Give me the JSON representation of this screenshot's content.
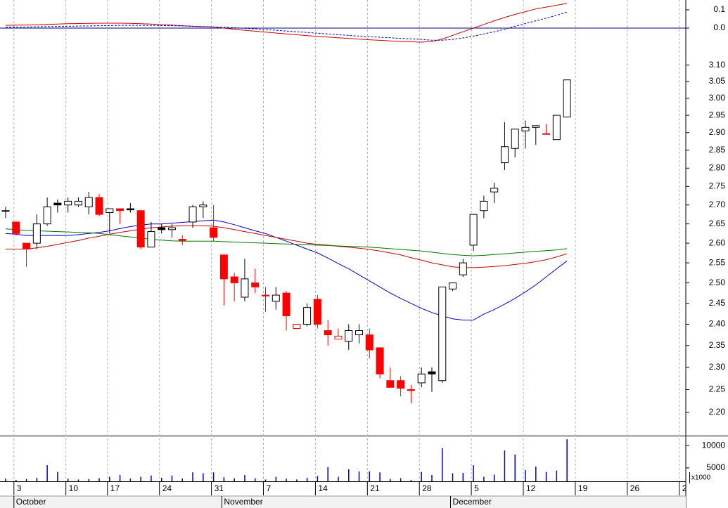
{
  "chart_data": [
    {
      "type": "candlestick",
      "log_scale": true,
      "xgrid": true,
      "ylim": [
        2.15,
        3.16
      ],
      "yticks": [
        {
          "value": 3.1,
          "label": "3.10"
        },
        {
          "value": 3.05,
          "label": "3.05"
        },
        {
          "value": 3.0,
          "label": "3.00"
        },
        {
          "value": 2.95,
          "label": "2.95"
        },
        {
          "value": 2.9,
          "label": "2.90"
        },
        {
          "value": 2.85,
          "label": "2.85"
        },
        {
          "value": 2.8,
          "label": "2.80"
        },
        {
          "value": 2.75,
          "label": "2.75"
        },
        {
          "value": 2.7,
          "label": "2.70"
        },
        {
          "value": 2.65,
          "label": "2.65"
        },
        {
          "value": 2.6,
          "label": "2.60"
        },
        {
          "value": 2.55,
          "label": "2.55"
        },
        {
          "value": 2.5,
          "label": "2.50"
        },
        {
          "value": 2.45,
          "label": "2.45"
        },
        {
          "value": 2.4,
          "label": "2.40"
        },
        {
          "value": 2.35,
          "label": "2.35"
        },
        {
          "value": 2.3,
          "label": "2.30"
        },
        {
          "value": 2.25,
          "label": "2.25"
        },
        {
          "value": 2.2,
          "label": "2.20"
        }
      ],
      "categories": [
        null,
        "3",
        null,
        null,
        null,
        null,
        "10",
        null,
        null,
        null,
        "17",
        null,
        null,
        null,
        null,
        "24",
        null,
        null,
        null,
        null,
        "31",
        null,
        null,
        null,
        null,
        "7",
        null,
        null,
        null,
        null,
        "14",
        null,
        null,
        null,
        null,
        "21",
        null,
        null,
        null,
        null,
        "28",
        null,
        null,
        null,
        null,
        "5",
        null,
        null,
        null,
        null,
        "12",
        null,
        null,
        null,
        null,
        "19",
        null,
        null,
        null,
        null,
        "26",
        null,
        null,
        null,
        null,
        "2"
      ],
      "month_categories": [
        null,
        "October",
        null,
        null,
        null,
        null,
        null,
        null,
        null,
        null,
        null,
        null,
        null,
        null,
        null,
        null,
        null,
        null,
        null,
        null,
        null,
        "November",
        null,
        null,
        null,
        null,
        null,
        null,
        null,
        null,
        null,
        null,
        null,
        null,
        null,
        null,
        null,
        null,
        null,
        null,
        null,
        null,
        null,
        "December",
        null,
        null,
        null,
        null,
        null,
        null,
        null,
        null,
        null,
        null,
        null,
        null,
        null,
        null,
        null,
        null,
        null,
        null,
        null,
        null,
        null,
        null
      ],
      "rising_color": "#000000",
      "falling_color": "#ff0000",
      "hollow_fill": "#ffffff",
      "open": [
        2.685,
        2.655,
        2.6,
        2.6,
        2.65,
        2.705,
        2.7,
        2.7,
        2.695,
        2.72,
        2.68,
        2.69,
        2.69,
        2.685,
        2.59,
        2.64,
        2.635,
        2.61,
        2.655,
        2.695,
        2.64,
        2.57,
        2.515,
        2.465,
        2.5,
        2.47,
        2.455,
        2.475,
        2.39,
        2.4,
        2.46,
        2.385,
        2.365,
        2.36,
        2.375,
        2.375,
        2.345,
        2.27,
        2.27,
        2.25,
        2.265,
        2.29,
        2.27,
        2.485,
        2.52,
        2.595,
        2.685,
        2.735,
        2.815,
        2.855,
        2.905,
        2.915,
        2.897,
        2.88,
        2.945,
        null,
        null,
        null,
        null,
        null,
        null,
        null,
        null,
        null,
        null,
        null
      ],
      "high": [
        2.695,
        2.655,
        2.6,
        2.675,
        2.72,
        2.715,
        2.72,
        2.72,
        2.735,
        2.73,
        2.69,
        2.69,
        2.705,
        2.685,
        2.655,
        2.65,
        2.65,
        2.62,
        2.7,
        2.71,
        2.7,
        2.57,
        2.525,
        2.56,
        2.535,
        2.49,
        2.49,
        2.48,
        2.4,
        2.45,
        2.47,
        2.41,
        2.39,
        2.4,
        2.4,
        2.39,
        2.345,
        2.3,
        2.28,
        2.26,
        2.3,
        2.3,
        2.49,
        2.5,
        2.56,
        2.675,
        2.725,
        2.76,
        2.93,
        2.91,
        2.935,
        2.92,
        2.925,
        2.95,
        3.055,
        null,
        null,
        null,
        null,
        null,
        null,
        null,
        null,
        null,
        null,
        null
      ],
      "low": [
        2.665,
        2.62,
        2.54,
        2.585,
        2.645,
        2.68,
        2.68,
        2.695,
        2.675,
        2.67,
        2.625,
        2.65,
        2.68,
        2.585,
        2.59,
        2.625,
        2.615,
        2.595,
        2.64,
        2.665,
        2.605,
        2.445,
        2.455,
        2.455,
        2.475,
        2.43,
        2.435,
        2.385,
        2.39,
        2.395,
        2.39,
        2.35,
        2.365,
        2.34,
        2.355,
        2.32,
        2.275,
        2.255,
        2.235,
        2.22,
        2.255,
        2.245,
        2.265,
        2.48,
        2.515,
        2.58,
        2.665,
        2.705,
        2.795,
        2.83,
        2.855,
        2.865,
        2.895,
        2.88,
        2.945,
        null,
        null,
        null,
        null,
        null,
        null,
        null,
        null,
        null,
        null,
        null
      ],
      "close": [
        2.685,
        2.625,
        2.585,
        2.65,
        2.695,
        2.7,
        2.71,
        2.71,
        2.72,
        2.675,
        2.69,
        2.685,
        2.687,
        2.59,
        2.63,
        2.635,
        2.64,
        2.607,
        2.695,
        2.7,
        2.615,
        2.51,
        2.5,
        2.51,
        2.49,
        2.468,
        2.47,
        2.42,
        2.4,
        2.44,
        2.4,
        2.375,
        2.372,
        2.385,
        2.385,
        2.34,
        2.285,
        2.255,
        2.253,
        2.248,
        2.285,
        2.285,
        2.49,
        2.5,
        2.55,
        2.675,
        2.71,
        2.745,
        2.86,
        2.91,
        2.915,
        2.92,
        2.895,
        2.95,
        3.055,
        null,
        null,
        null,
        null,
        null,
        null,
        null,
        null,
        null,
        null,
        null
      ],
      "series": [
        {
          "color": "#0000cc",
          "values": [
            2.625,
            2.623,
            2.62,
            2.62,
            2.62,
            2.62,
            2.62,
            2.622,
            2.625,
            2.628,
            2.632,
            2.638,
            2.643,
            2.647,
            2.65,
            2.65,
            2.652,
            2.654,
            2.656,
            2.658,
            2.66,
            2.655,
            2.648,
            2.64,
            2.632,
            2.625,
            2.615,
            2.605,
            2.595,
            2.585,
            2.575,
            2.562,
            2.548,
            2.535,
            2.52,
            2.505,
            2.49,
            2.475,
            2.462,
            2.45,
            2.438,
            2.428,
            2.42,
            2.413,
            2.41,
            2.41,
            2.424,
            2.435,
            2.448,
            2.462,
            2.478,
            2.495,
            2.515,
            2.535,
            2.555,
            null,
            null,
            null,
            null,
            null,
            null,
            null,
            null,
            null,
            null,
            null
          ]
        },
        {
          "color": "#cc0000",
          "values": [
            2.585,
            2.585,
            2.585,
            2.588,
            2.592,
            2.597,
            2.602,
            2.607,
            2.613,
            2.618,
            2.623,
            2.628,
            2.632,
            2.636,
            2.64,
            2.642,
            2.644,
            2.645,
            2.645,
            2.645,
            2.644,
            2.64,
            2.635,
            2.63,
            2.625,
            2.62,
            2.615,
            2.61,
            2.605,
            2.6,
            2.597,
            2.595,
            2.592,
            2.59,
            2.587,
            2.584,
            2.58,
            2.575,
            2.57,
            2.563,
            2.557,
            2.55,
            2.545,
            2.54,
            2.538,
            2.538,
            2.539,
            2.541,
            2.543,
            2.546,
            2.549,
            2.553,
            2.558,
            2.565,
            2.573,
            null,
            null,
            null,
            null,
            null,
            null,
            null,
            null,
            null,
            null,
            null
          ]
        },
        {
          "color": "#007700",
          "values": [
            2.637,
            2.635,
            2.633,
            2.632,
            2.631,
            2.63,
            2.629,
            2.628,
            2.627,
            2.625,
            2.622,
            2.619,
            2.616,
            2.613,
            2.61,
            2.608,
            2.606,
            2.605,
            2.605,
            2.605,
            2.605,
            2.604,
            2.603,
            2.602,
            2.601,
            2.6,
            2.599,
            2.598,
            2.597,
            2.596,
            2.595,
            2.594,
            2.593,
            2.592,
            2.591,
            2.59,
            2.588,
            2.586,
            2.584,
            2.582,
            2.58,
            2.577,
            2.574,
            2.571,
            2.569,
            2.568,
            2.569,
            2.571,
            2.573,
            2.575,
            2.577,
            2.579,
            2.581,
            2.583,
            2.586,
            null,
            null,
            null,
            null,
            null,
            null,
            null,
            null,
            null,
            null,
            null
          ]
        }
      ]
    },
    {
      "type": "line",
      "ylim": [
        -0.1,
        0.15
      ],
      "zero_line": true,
      "yticks": [
        {
          "value": 0.1,
          "label": "0.1"
        },
        {
          "value": 0,
          "label": "0.0"
        }
      ],
      "series": [
        {
          "color": "#cc0000",
          "dashed": false,
          "values": [
            0.015,
            0.016,
            0.017,
            0.018,
            0.02,
            0.022,
            0.024,
            0.025,
            0.026,
            0.027,
            0.027,
            0.027,
            0.026,
            0.024,
            0.022,
            0.019,
            0.016,
            0.013,
            0.01,
            0.008,
            0.006,
            0,
            -0.006,
            -0.012,
            -0.017,
            -0.022,
            -0.027,
            -0.032,
            -0.036,
            -0.041,
            -0.045,
            -0.049,
            -0.053,
            -0.057,
            -0.06,
            -0.064,
            -0.067,
            -0.07,
            -0.073,
            -0.075,
            -0.077,
            -0.073,
            -0.06,
            -0.04,
            -0.02,
            0,
            0.02,
            0.04,
            0.058,
            0.075,
            0.09,
            0.105,
            0.115,
            0.125,
            0.135,
            null,
            null,
            null,
            null,
            null,
            null,
            null,
            null,
            null,
            null,
            null
          ]
        },
        {
          "color": "#0000cc",
          "dashed": true,
          "values": [
            0.004,
            0.005,
            0.006,
            0.007,
            0.008,
            0.009,
            0.01,
            0.011,
            0.012,
            0.013,
            0.014,
            0.015,
            0.015,
            0.015,
            0.015,
            0.014,
            0.013,
            0.012,
            0.01,
            0.008,
            0.006,
            0.004,
            0.002,
            -0.001,
            -0.004,
            -0.008,
            -0.012,
            -0.016,
            -0.02,
            -0.024,
            -0.028,
            -0.032,
            -0.036,
            -0.04,
            -0.044,
            -0.047,
            -0.05,
            -0.053,
            -0.056,
            -0.059,
            -0.062,
            -0.066,
            -0.066,
            -0.062,
            -0.054,
            -0.044,
            -0.032,
            -0.02,
            -0.006,
            0.01,
            0.025,
            0.04,
            0.055,
            0.07,
            0.088,
            null,
            null,
            null,
            null,
            null,
            null,
            null,
            null,
            null,
            null,
            null
          ]
        }
      ]
    },
    {
      "type": "bar",
      "ylim": [
        2000,
        11900
      ],
      "yticks": [
        10000,
        5000
      ],
      "color": "#0000cc",
      "unit_label": "x1000",
      "values": [
        2600,
        2300,
        2500,
        2800,
        5600,
        4100,
        2600,
        2400,
        2500,
        2700,
        3000,
        3400,
        2600,
        3000,
        3300,
        2800,
        3300,
        2600,
        4000,
        3800,
        4000,
        2900,
        2700,
        3400,
        2700,
        2400,
        3000,
        2600,
        2400,
        2800,
        3200,
        5200,
        3000,
        4700,
        4200,
        4200,
        4000,
        2500,
        2700,
        2300,
        4100,
        3400,
        9400,
        3800,
        3900,
        5600,
        3000,
        3500,
        8900,
        8000,
        4500,
        5300,
        4100,
        4400,
        11400,
        null,
        null,
        null,
        null,
        null,
        null,
        null,
        null,
        null,
        null,
        null
      ]
    }
  ]
}
